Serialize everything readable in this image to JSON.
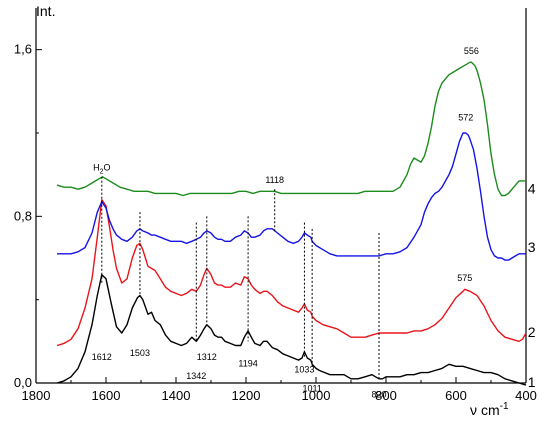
{
  "chart_data": {
    "type": "line",
    "title": "",
    "ylabel": "Int.",
    "xlabel_main": "ν",
    "xlabel_unit": "cm",
    "xlabel_exp": "-1",
    "x_reversed": true,
    "xlim": [
      1800,
      400
    ],
    "ylim": [
      0,
      1.8
    ],
    "x_ticks": [
      {
        "value": 1800,
        "label": "1800"
      },
      {
        "value": 1600,
        "label": "1600"
      },
      {
        "value": 1400,
        "label": "1400"
      },
      {
        "value": 1200,
        "label": "1200"
      },
      {
        "value": 1000,
        "label": "1000"
      },
      {
        "value": 800,
        "label": "800"
      },
      {
        "value": 600,
        "label": "600"
      },
      {
        "value": 400,
        "label": "400"
      }
    ],
    "y_ticks": [
      {
        "value": 0.0,
        "label": "0,0"
      },
      {
        "value": 0.8,
        "label": "0,8"
      },
      {
        "value": 1.6,
        "label": "1,6"
      }
    ],
    "series": [
      {
        "id": "1",
        "label": "1",
        "color": "#000000",
        "x": [
          1740,
          1720,
          1700,
          1680,
          1660,
          1640,
          1625,
          1612,
          1600,
          1585,
          1570,
          1555,
          1540,
          1525,
          1510,
          1503,
          1495,
          1480,
          1470,
          1460,
          1445,
          1430,
          1415,
          1400,
          1385,
          1370,
          1355,
          1342,
          1330,
          1320,
          1312,
          1300,
          1290,
          1280,
          1270,
          1260,
          1245,
          1230,
          1215,
          1205,
          1194,
          1185,
          1175,
          1160,
          1150,
          1140,
          1125,
          1110,
          1095,
          1080,
          1065,
          1050,
          1040,
          1033,
          1025,
          1015,
          1011,
          1000,
          990,
          975,
          960,
          940,
          920,
          900,
          880,
          860,
          840,
          830,
          820,
          810,
          800,
          780,
          760,
          740,
          720,
          700,
          680,
          660,
          640,
          630,
          620,
          600,
          580,
          560,
          540,
          520,
          500,
          480,
          460,
          440,
          420,
          400
        ],
        "y": [
          0.0,
          0.01,
          0.03,
          0.07,
          0.15,
          0.28,
          0.42,
          0.52,
          0.5,
          0.38,
          0.27,
          0.24,
          0.28,
          0.36,
          0.41,
          0.42,
          0.4,
          0.33,
          0.34,
          0.3,
          0.28,
          0.23,
          0.2,
          0.19,
          0.18,
          0.19,
          0.22,
          0.2,
          0.23,
          0.26,
          0.28,
          0.26,
          0.23,
          0.22,
          0.22,
          0.2,
          0.19,
          0.18,
          0.18,
          0.22,
          0.25,
          0.22,
          0.19,
          0.18,
          0.2,
          0.2,
          0.17,
          0.16,
          0.14,
          0.13,
          0.12,
          0.11,
          0.12,
          0.15,
          0.12,
          0.11,
          0.09,
          0.07,
          0.06,
          0.05,
          0.04,
          0.04,
          0.04,
          0.02,
          0.02,
          0.03,
          0.04,
          0.03,
          0.02,
          0.02,
          0.03,
          0.03,
          0.03,
          0.04,
          0.04,
          0.05,
          0.05,
          0.06,
          0.07,
          0.08,
          0.09,
          0.08,
          0.08,
          0.07,
          0.06,
          0.05,
          0.05,
          0.04,
          0.02,
          0.01,
          0.0,
          -0.01
        ]
      },
      {
        "id": "2",
        "label": "2",
        "color": "#e8141b",
        "x": [
          1740,
          1720,
          1700,
          1680,
          1660,
          1640,
          1625,
          1612,
          1600,
          1590,
          1580,
          1570,
          1555,
          1540,
          1525,
          1512,
          1503,
          1495,
          1480,
          1470,
          1460,
          1445,
          1430,
          1415,
          1400,
          1385,
          1370,
          1355,
          1342,
          1330,
          1320,
          1312,
          1300,
          1290,
          1280,
          1270,
          1260,
          1245,
          1230,
          1215,
          1205,
          1194,
          1185,
          1175,
          1160,
          1150,
          1140,
          1125,
          1110,
          1095,
          1080,
          1065,
          1050,
          1040,
          1033,
          1025,
          1015,
          1011,
          1000,
          980,
          960,
          940,
          920,
          900,
          880,
          860,
          840,
          820,
          800,
          780,
          760,
          740,
          720,
          700,
          680,
          660,
          640,
          620,
          600,
          580,
          575,
          560,
          540,
          520,
          500,
          480,
          460,
          440,
          420,
          410,
          400
        ],
        "y": [
          0.18,
          0.19,
          0.21,
          0.26,
          0.36,
          0.5,
          0.7,
          0.88,
          0.85,
          0.75,
          0.64,
          0.55,
          0.48,
          0.5,
          0.6,
          0.66,
          0.67,
          0.64,
          0.56,
          0.55,
          0.54,
          0.5,
          0.46,
          0.44,
          0.43,
          0.42,
          0.43,
          0.45,
          0.44,
          0.47,
          0.52,
          0.55,
          0.52,
          0.48,
          0.47,
          0.47,
          0.46,
          0.46,
          0.48,
          0.47,
          0.51,
          0.5,
          0.47,
          0.45,
          0.43,
          0.44,
          0.44,
          0.42,
          0.39,
          0.37,
          0.36,
          0.35,
          0.34,
          0.36,
          0.38,
          0.35,
          0.34,
          0.32,
          0.3,
          0.28,
          0.27,
          0.26,
          0.24,
          0.22,
          0.22,
          0.22,
          0.23,
          0.24,
          0.24,
          0.24,
          0.24,
          0.24,
          0.25,
          0.25,
          0.26,
          0.28,
          0.31,
          0.36,
          0.41,
          0.44,
          0.45,
          0.44,
          0.42,
          0.37,
          0.3,
          0.25,
          0.22,
          0.21,
          0.2,
          0.21,
          0.24
        ]
      },
      {
        "id": "3",
        "label": "3",
        "color": "#1414e6",
        "x": [
          1740,
          1720,
          1700,
          1680,
          1660,
          1640,
          1625,
          1612,
          1600,
          1590,
          1580,
          1570,
          1555,
          1540,
          1525,
          1512,
          1503,
          1495,
          1480,
          1470,
          1460,
          1445,
          1430,
          1415,
          1400,
          1385,
          1370,
          1355,
          1342,
          1330,
          1320,
          1312,
          1300,
          1290,
          1280,
          1270,
          1260,
          1245,
          1230,
          1215,
          1205,
          1194,
          1185,
          1175,
          1160,
          1150,
          1140,
          1125,
          1110,
          1095,
          1080,
          1065,
          1050,
          1040,
          1033,
          1025,
          1015,
          1011,
          1000,
          980,
          960,
          940,
          920,
          900,
          880,
          860,
          840,
          820,
          800,
          780,
          760,
          740,
          720,
          700,
          690,
          680,
          670,
          660,
          650,
          640,
          630,
          620,
          610,
          600,
          590,
          580,
          572,
          565,
          560,
          550,
          540,
          530,
          520,
          510,
          500,
          490,
          480,
          470,
          460,
          450,
          440,
          430,
          420,
          410,
          400
        ],
        "y": [
          0.62,
          0.62,
          0.62,
          0.63,
          0.65,
          0.72,
          0.82,
          0.87,
          0.84,
          0.78,
          0.74,
          0.71,
          0.69,
          0.68,
          0.7,
          0.73,
          0.74,
          0.73,
          0.72,
          0.71,
          0.71,
          0.7,
          0.69,
          0.68,
          0.68,
          0.68,
          0.67,
          0.68,
          0.69,
          0.7,
          0.72,
          0.73,
          0.72,
          0.7,
          0.69,
          0.69,
          0.68,
          0.68,
          0.7,
          0.71,
          0.73,
          0.72,
          0.7,
          0.7,
          0.71,
          0.73,
          0.74,
          0.74,
          0.72,
          0.7,
          0.68,
          0.67,
          0.68,
          0.7,
          0.72,
          0.71,
          0.7,
          0.68,
          0.66,
          0.64,
          0.62,
          0.61,
          0.61,
          0.61,
          0.61,
          0.61,
          0.61,
          0.61,
          0.62,
          0.62,
          0.63,
          0.65,
          0.7,
          0.76,
          0.82,
          0.86,
          0.89,
          0.91,
          0.92,
          0.94,
          0.97,
          1.0,
          1.04,
          1.1,
          1.16,
          1.2,
          1.2,
          1.19,
          1.17,
          1.12,
          1.03,
          0.92,
          0.8,
          0.7,
          0.64,
          0.61,
          0.6,
          0.6,
          0.59,
          0.59,
          0.6,
          0.61,
          0.62,
          0.62,
          0.62
        ]
      },
      {
        "id": "4",
        "label": "4",
        "color": "#1c8c1c",
        "x": [
          1740,
          1720,
          1700,
          1680,
          1660,
          1640,
          1630,
          1620,
          1610,
          1600,
          1580,
          1560,
          1540,
          1520,
          1500,
          1480,
          1460,
          1440,
          1420,
          1400,
          1380,
          1360,
          1340,
          1320,
          1300,
          1280,
          1260,
          1240,
          1220,
          1200,
          1180,
          1160,
          1140,
          1118,
          1100,
          1080,
          1060,
          1040,
          1020,
          1000,
          980,
          960,
          940,
          920,
          900,
          880,
          860,
          840,
          820,
          800,
          790,
          780,
          770,
          760,
          750,
          740,
          730,
          720,
          710,
          700,
          690,
          680,
          670,
          660,
          650,
          640,
          630,
          620,
          610,
          600,
          590,
          580,
          570,
          560,
          556,
          550,
          545,
          540,
          535,
          530,
          520,
          510,
          500,
          490,
          480,
          470,
          460,
          450,
          440,
          430,
          420,
          410,
          400
        ],
        "y": [
          0.95,
          0.94,
          0.94,
          0.93,
          0.94,
          0.96,
          0.97,
          0.98,
          0.99,
          0.98,
          0.96,
          0.94,
          0.93,
          0.92,
          0.92,
          0.92,
          0.91,
          0.91,
          0.91,
          0.91,
          0.9,
          0.91,
          0.91,
          0.91,
          0.91,
          0.91,
          0.91,
          0.91,
          0.92,
          0.92,
          0.91,
          0.92,
          0.92,
          0.92,
          0.91,
          0.91,
          0.91,
          0.91,
          0.91,
          0.91,
          0.91,
          0.91,
          0.91,
          0.91,
          0.91,
          0.91,
          0.92,
          0.92,
          0.92,
          0.92,
          0.92,
          0.92,
          0.93,
          0.94,
          0.97,
          1.0,
          1.05,
          1.08,
          1.07,
          1.06,
          1.09,
          1.15,
          1.23,
          1.33,
          1.4,
          1.44,
          1.46,
          1.48,
          1.49,
          1.5,
          1.51,
          1.52,
          1.53,
          1.54,
          1.54,
          1.53,
          1.52,
          1.5,
          1.47,
          1.44,
          1.36,
          1.24,
          1.1,
          1.0,
          0.93,
          0.9,
          0.9,
          0.91,
          0.93,
          0.95,
          0.97,
          0.97,
          0.97
        ]
      }
    ],
    "peak_lines": [
      {
        "x": 1612,
        "y_top": 0.99,
        "y_bottom": 0.48
      },
      {
        "x": 1503,
        "y_top": 0.82,
        "y_bottom": 0.42
      },
      {
        "x": 1342,
        "y_top": 0.77,
        "y_bottom": 0.2
      },
      {
        "x": 1312,
        "y_top": 0.8,
        "y_bottom": 0.28
      },
      {
        "x": 1194,
        "y_top": 0.8,
        "y_bottom": 0.2
      },
      {
        "x": 1118,
        "y_top": 0.93,
        "y_bottom": 0.72
      },
      {
        "x": 1033,
        "y_top": 0.77,
        "y_bottom": 0.12
      },
      {
        "x": 1011,
        "y_top": 0.74,
        "y_bottom": 0.07
      },
      {
        "x": 820,
        "y_top": 0.72,
        "y_bottom": 0.02
      }
    ],
    "annotations": [
      {
        "text": "1612",
        "x": 1612,
        "y": 0.11,
        "color": "#000000"
      },
      {
        "text": "1503",
        "x": 1503,
        "y": 0.13,
        "color": "#000000"
      },
      {
        "text": "1342",
        "x": 1342,
        "y": 0.02,
        "color": "#000000"
      },
      {
        "text": "1312",
        "x": 1312,
        "y": 0.11,
        "color": "#000000"
      },
      {
        "text": "1194",
        "x": 1194,
        "y": 0.08,
        "color": "#000000"
      },
      {
        "text": "1033",
        "x": 1033,
        "y": 0.05,
        "color": "#000000"
      },
      {
        "text": "1011",
        "x": 1011,
        "y": -0.04,
        "color": "#000000"
      },
      {
        "text": "820",
        "x": 820,
        "y": -0.07,
        "color": "#000000"
      },
      {
        "text": "1118",
        "x": 1118,
        "y": 0.96,
        "color": "#2aa8b0"
      },
      {
        "text": "575",
        "x": 575,
        "y": 0.49,
        "color": "#e8141b"
      },
      {
        "text": "572",
        "x": 572,
        "y": 1.26,
        "color": "#1414e6"
      },
      {
        "text": "556",
        "x": 556,
        "y": 1.58,
        "color": "#1c8c1c"
      }
    ],
    "water_label": {
      "main": "H",
      "sub": "2",
      "tail": "O",
      "x": 1612,
      "y": 1.02
    },
    "series_labels": [
      {
        "text": "1",
        "x": 395,
        "y": -0.02
      },
      {
        "text": "2",
        "x": 395,
        "y": 0.22
      },
      {
        "text": "3",
        "x": 395,
        "y": 0.63
      },
      {
        "text": "4",
        "x": 395,
        "y": 0.91
      }
    ]
  }
}
